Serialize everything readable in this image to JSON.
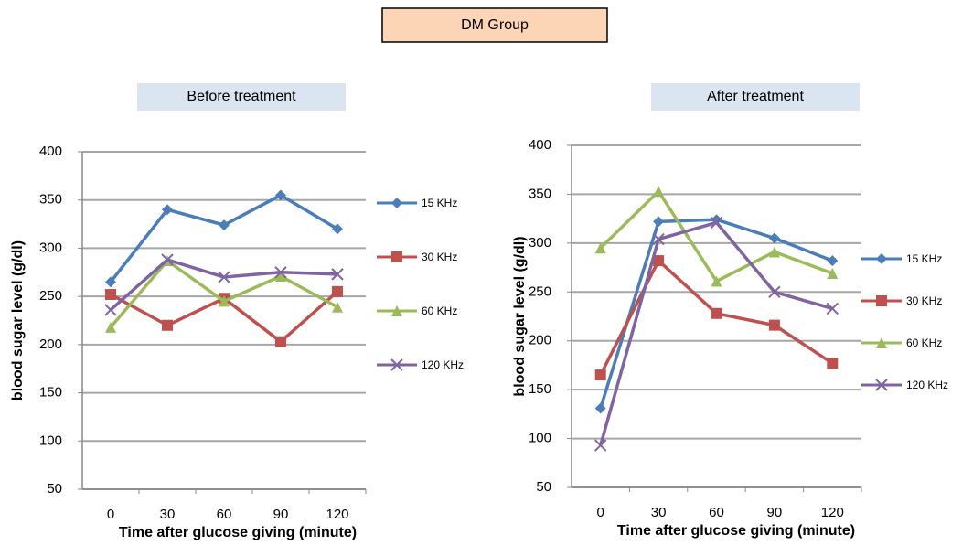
{
  "header": {
    "title": "DM Group"
  },
  "chart_data": [
    {
      "type": "line",
      "title": "Before treatment",
      "xlabel": "Time after glucose giving (minute)",
      "ylabel": "blood sugar level  (g/dl)",
      "categories": [
        "0",
        "30",
        "60",
        "90",
        "120"
      ],
      "ylim": [
        50,
        400
      ],
      "yticks": [
        50,
        100,
        150,
        200,
        250,
        300,
        350,
        400
      ],
      "grid": true,
      "legend": "right",
      "series": [
        {
          "name": "15 KHz",
          "color": "#4a7ebb",
          "marker": "diamond",
          "values": [
            265,
            340,
            324,
            355,
            320
          ]
        },
        {
          "name": "30 KHz",
          "color": "#c0504d",
          "marker": "square",
          "values": [
            252,
            220,
            248,
            203,
            255
          ]
        },
        {
          "name": "60 KHz",
          "color": "#9bbb59",
          "marker": "triangle",
          "values": [
            218,
            287,
            245,
            271,
            239
          ]
        },
        {
          "name": "120 KHz",
          "color": "#8064a2",
          "marker": "x",
          "values": [
            236,
            288,
            270,
            275,
            273
          ]
        }
      ]
    },
    {
      "type": "line",
      "title": "After treatment",
      "xlabel": "Time after glucose giving (minute)",
      "ylabel": "blood sugar level  (g/dl)",
      "categories": [
        "0",
        "30",
        "60",
        "90",
        "120"
      ],
      "ylim": [
        50,
        400
      ],
      "yticks": [
        50,
        100,
        150,
        200,
        250,
        300,
        350,
        400
      ],
      "grid": true,
      "legend": "right",
      "series": [
        {
          "name": "15 KHz",
          "color": "#4a7ebb",
          "marker": "diamond",
          "values": [
            131,
            322,
            324,
            305,
            282
          ]
        },
        {
          "name": "30 KHz",
          "color": "#c0504d",
          "marker": "square",
          "values": [
            165,
            282,
            228,
            216,
            177
          ]
        },
        {
          "name": "60 KHz",
          "color": "#9bbb59",
          "marker": "triangle",
          "values": [
            295,
            353,
            261,
            291,
            269
          ]
        },
        {
          "name": "120 KHz",
          "color": "#8064a2",
          "marker": "x",
          "values": [
            93,
            304,
            321,
            250,
            233
          ]
        }
      ]
    }
  ]
}
